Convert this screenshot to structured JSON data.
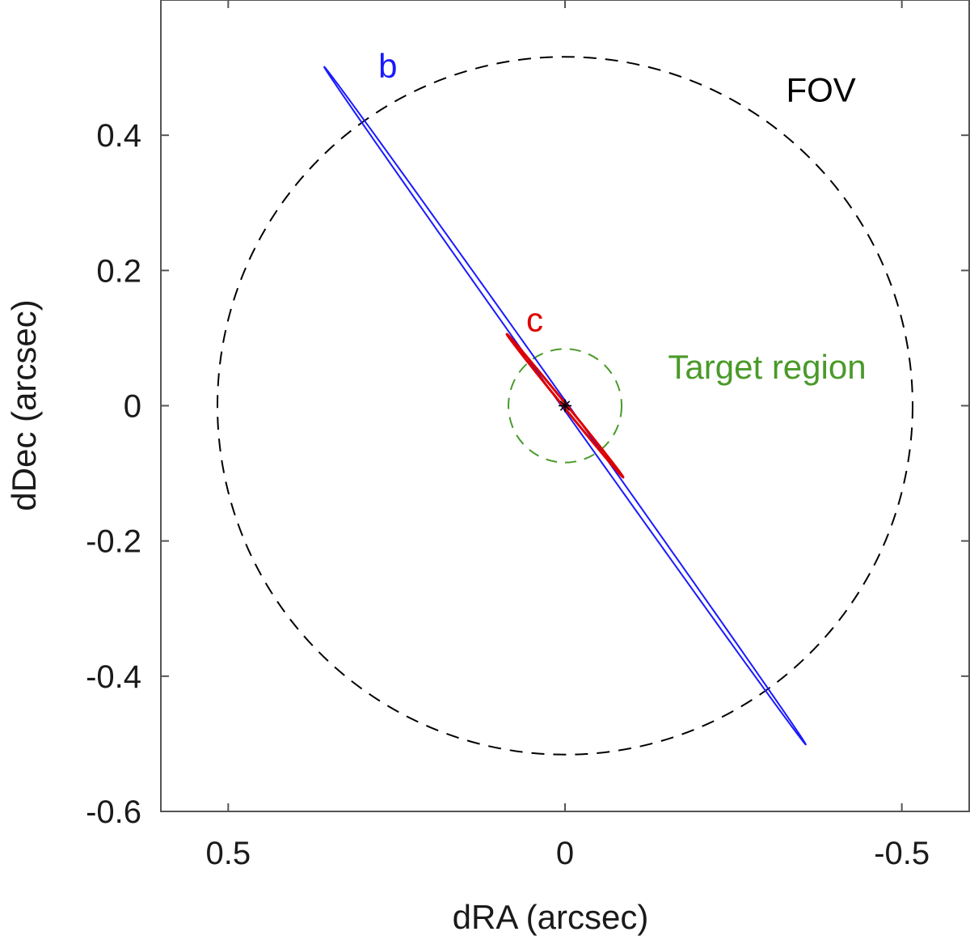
{
  "chart_data": {
    "type": "scatter",
    "title": "",
    "xlabel": "dRA (arcsec)",
    "ylabel": "dDec (arcsec)",
    "xlim": [
      0.6,
      -0.6
    ],
    "ylim": [
      -0.6,
      0.6
    ],
    "x_ticks": [
      0.5,
      0,
      -0.5
    ],
    "x_tick_labels": [
      "0.5",
      "0",
      "-0.5"
    ],
    "y_ticks": [
      0.4,
      0.2,
      0,
      -0.2,
      -0.4,
      -0.6
    ],
    "y_tick_labels": [
      "0.4",
      "0.2",
      "0",
      "-0.2",
      "-0.4",
      "-0.6"
    ],
    "grid": false,
    "regions": [
      {
        "name": "FOV",
        "label": "FOV",
        "shape": "circle",
        "center": [
          0,
          0
        ],
        "radius": 0.516,
        "style": "dashed",
        "color": "#000000",
        "label_at": [
          -0.38,
          0.45
        ]
      },
      {
        "name": "target-region",
        "label": "Target region",
        "shape": "circle",
        "center": [
          0,
          0
        ],
        "radius": 0.084,
        "style": "dashed",
        "color": "#4a9a2a",
        "label_at": [
          -0.3,
          0.04
        ]
      }
    ],
    "error_ellipses": [
      {
        "name": "b",
        "label": "b",
        "color": "#1a1aff",
        "center": [
          0,
          0
        ],
        "semi_major": 0.6155,
        "semi_minor": 0.0045,
        "angle_deg": 54.5,
        "label_at": [
          0.263,
          0.485
        ]
      },
      {
        "name": "c",
        "label": "c",
        "color": "#dd0000",
        "center": [
          0,
          0
        ],
        "semi_major": 0.1366,
        "semi_minor": 0.0025,
        "angle_deg": 50.8,
        "label_at": [
          0.045,
          0.11
        ]
      }
    ],
    "markers": [
      {
        "name": "star-position",
        "x": 0,
        "y": 0,
        "symbol": "asterisk",
        "color": "#000000"
      }
    ]
  }
}
